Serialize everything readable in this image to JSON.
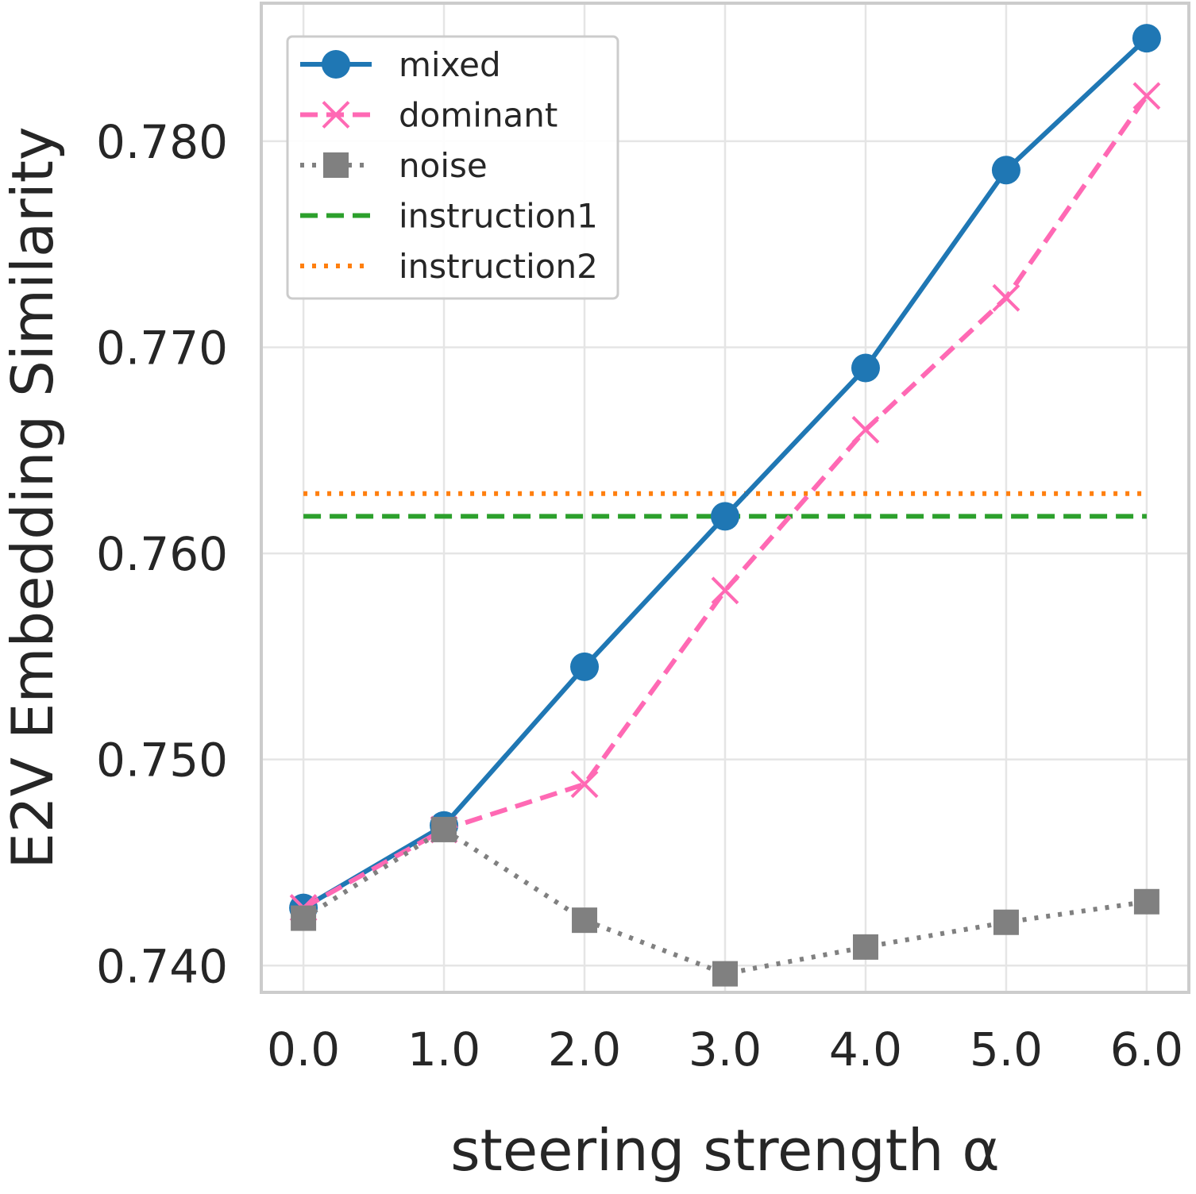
{
  "chart_data": {
    "type": "line",
    "title": "",
    "xlabel": "steering strength α",
    "ylabel": "E2V Embedding Similarity",
    "x": [
      0.0,
      1.0,
      2.0,
      3.0,
      4.0,
      5.0,
      6.0
    ],
    "xticks": [
      "0.0",
      "1.0",
      "2.0",
      "3.0",
      "4.0",
      "5.0",
      "6.0"
    ],
    "yticks": [
      0.74,
      0.75,
      0.76,
      0.77,
      0.78
    ],
    "ytick_labels": [
      "0.740",
      "0.750",
      "0.760",
      "0.770",
      "0.780"
    ],
    "xlim": [
      -0.3,
      6.3
    ],
    "ylim": [
      0.7387,
      0.7867
    ],
    "grid": true,
    "legend_position": "top-left",
    "series": [
      {
        "name": "mixed",
        "values": [
          0.7428,
          0.7468,
          0.7545,
          0.7618,
          0.769,
          0.7786,
          0.785
        ],
        "color": "#1f77b4",
        "line": "solid",
        "marker": "circle"
      },
      {
        "name": "dominant",
        "values": [
          0.7428,
          0.7466,
          0.7488,
          0.7582,
          0.766,
          0.7724,
          0.7822
        ],
        "color": "#ff69b4",
        "line": "dashed",
        "marker": "x"
      },
      {
        "name": "noise",
        "values": [
          0.7423,
          0.7466,
          0.7422,
          0.7396,
          0.7409,
          0.7421,
          0.7431
        ],
        "color": "#808080",
        "line": "dotted",
        "marker": "square"
      }
    ],
    "reference_lines": [
      {
        "name": "instruction1",
        "value": 0.7618,
        "color": "#2ca02c",
        "line": "dashed"
      },
      {
        "name": "instruction2",
        "value": 0.7629,
        "color": "#ff7f0e",
        "line": "dotted"
      }
    ]
  }
}
